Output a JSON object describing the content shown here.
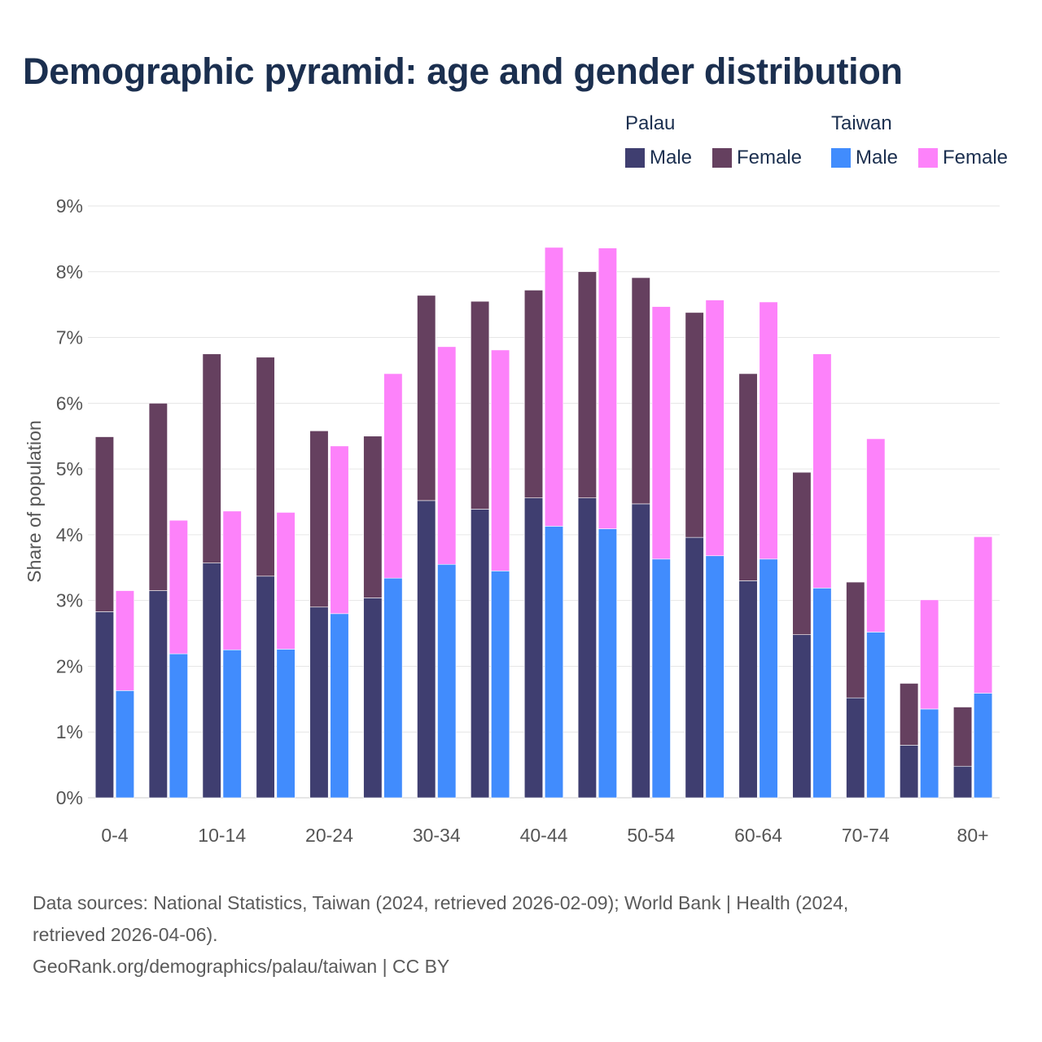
{
  "title": "Demographic pyramid: age and gender distribution",
  "legend": {
    "groups": [
      {
        "name": "Palau",
        "items": [
          {
            "label": "Male",
            "color": "#3f3e70"
          },
          {
            "label": "Female",
            "color": "#65405f"
          }
        ]
      },
      {
        "name": "Taiwan",
        "items": [
          {
            "label": "Male",
            "color": "#418cfd"
          },
          {
            "label": "Female",
            "color": "#fd82fa"
          }
        ]
      }
    ]
  },
  "footer": {
    "line1": "Data sources: National Statistics, Taiwan (2024, retrieved 2026-02-09); World Bank | Health (2024,",
    "line2": "retrieved 2026-04-06).",
    "line3": "GeoRank.org/demographics/palau/taiwan | CC BY"
  },
  "chart_data": {
    "type": "bar",
    "stacked": true,
    "title": "Demographic pyramid: age and gender distribution",
    "xlabel": "",
    "ylabel": "Share of population",
    "ylim": [
      0,
      9
    ],
    "yticks": [
      0,
      1,
      2,
      3,
      4,
      5,
      6,
      7,
      8,
      9
    ],
    "ytick_labels": [
      "0%",
      "1%",
      "2%",
      "3%",
      "4%",
      "5%",
      "6%",
      "7%",
      "8%",
      "9%"
    ],
    "categories": [
      "0-4",
      "5-9",
      "10-14",
      "15-19",
      "20-24",
      "25-29",
      "30-34",
      "35-39",
      "40-44",
      "45-49",
      "50-54",
      "55-59",
      "60-64",
      "65-69",
      "70-74",
      "75-79",
      "80+"
    ],
    "xtick_labels": [
      "0-4",
      "",
      "10-14",
      "",
      "20-24",
      "",
      "30-34",
      "",
      "40-44",
      "",
      "50-54",
      "",
      "60-64",
      "",
      "70-74",
      "",
      "80+"
    ],
    "series": [
      {
        "name": "Male",
        "stack": "Palau",
        "color": "#3f3e70",
        "values": [
          2.83,
          3.15,
          3.57,
          3.37,
          2.9,
          3.04,
          4.52,
          4.39,
          4.56,
          4.56,
          4.47,
          3.96,
          3.3,
          2.48,
          1.52,
          0.8,
          0.48
        ]
      },
      {
        "name": "Female",
        "stack": "Palau",
        "color": "#65405f",
        "values": [
          2.66,
          2.85,
          3.18,
          3.33,
          2.68,
          2.46,
          3.12,
          3.16,
          3.16,
          3.44,
          3.44,
          3.42,
          3.15,
          2.47,
          1.76,
          0.94,
          0.9
        ]
      },
      {
        "name": "Male",
        "stack": "Taiwan",
        "color": "#418cfd",
        "values": [
          1.63,
          2.19,
          2.25,
          2.26,
          2.8,
          3.34,
          3.55,
          3.45,
          4.13,
          4.09,
          3.63,
          3.68,
          3.63,
          3.19,
          2.52,
          1.35,
          1.59
        ]
      },
      {
        "name": "Female",
        "stack": "Taiwan",
        "color": "#fd82fa",
        "values": [
          1.52,
          2.03,
          2.11,
          2.08,
          2.55,
          3.11,
          3.31,
          3.36,
          4.24,
          4.27,
          3.84,
          3.89,
          3.91,
          3.56,
          2.94,
          1.66,
          2.38
        ]
      }
    ]
  }
}
